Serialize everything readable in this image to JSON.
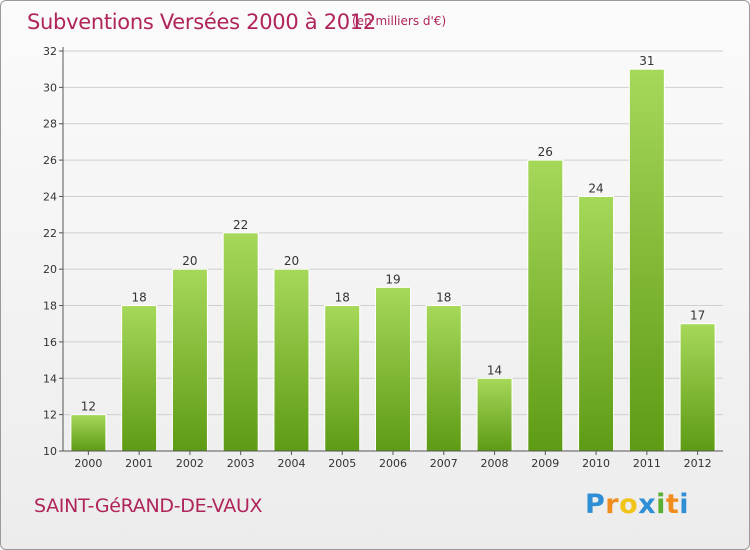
{
  "title": "Subventions Versées 2000 à 2012",
  "subtitle": "(en milliers d'€)",
  "commune": "SAINT-GéRAND-DE-VAUX",
  "logo": {
    "letters": [
      "P",
      "r",
      "o",
      "x",
      "i",
      "t",
      "i"
    ],
    "colors": [
      "#2e8fd6",
      "#f08c1e",
      "#f0c419",
      "#2e8fd6",
      "#5ab031",
      "#f08c1e",
      "#2e8fd6"
    ]
  },
  "colors": {
    "title": "#b0245c",
    "bar_top": "#a6d85a",
    "bar_bottom": "#5e9b14",
    "grid": "#cfcfcf"
  },
  "chart_data": {
    "type": "bar",
    "title": "Subventions Versées 2000 à 2012",
    "xlabel": "",
    "ylabel": "",
    "categories": [
      "2000",
      "2001",
      "2002",
      "2003",
      "2004",
      "2005",
      "2006",
      "2007",
      "2008",
      "2009",
      "2010",
      "2011",
      "2012"
    ],
    "values": [
      12,
      18,
      20,
      22,
      20,
      18,
      19,
      18,
      14,
      26,
      24,
      31,
      17
    ],
    "ylim": [
      10,
      32
    ],
    "yticks": [
      10,
      12,
      14,
      16,
      18,
      20,
      22,
      24,
      26,
      28,
      30,
      32
    ],
    "grid": true,
    "legend": "none"
  }
}
